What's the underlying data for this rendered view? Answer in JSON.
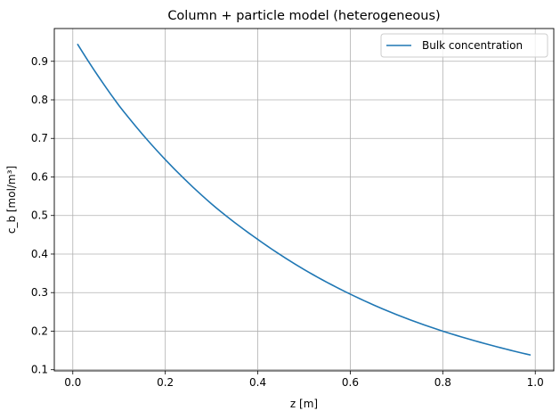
{
  "chart_data": {
    "type": "line",
    "title": "Column + particle model (heterogeneous)",
    "xlabel": "z [m]",
    "ylabel": "c_b [mol/m³]",
    "xlim": [
      -0.04,
      1.04
    ],
    "ylim": [
      0.097,
      0.985
    ],
    "xticks": [
      0.0,
      0.2,
      0.4,
      0.6,
      0.8,
      1.0
    ],
    "xtick_labels": [
      "0.0",
      "0.2",
      "0.4",
      "0.6",
      "0.8",
      "1.0"
    ],
    "yticks": [
      0.1,
      0.2,
      0.3,
      0.4,
      0.5,
      0.6,
      0.7,
      0.8,
      0.9
    ],
    "ytick_labels": [
      "0.1",
      "0.2",
      "0.3",
      "0.4",
      "0.5",
      "0.6",
      "0.7",
      "0.8",
      "0.9"
    ],
    "grid": true,
    "legend_position": "top-right",
    "series": [
      {
        "name": "Bulk concentration",
        "color": "#1f77b4",
        "x": [
          0.01,
          0.1,
          0.2,
          0.3,
          0.4,
          0.5,
          0.6,
          0.7,
          0.8,
          0.9,
          0.99
        ],
        "y": [
          0.945,
          0.785,
          0.645,
          0.53,
          0.438,
          0.36,
          0.296,
          0.243,
          0.2,
          0.165,
          0.138
        ]
      }
    ]
  }
}
